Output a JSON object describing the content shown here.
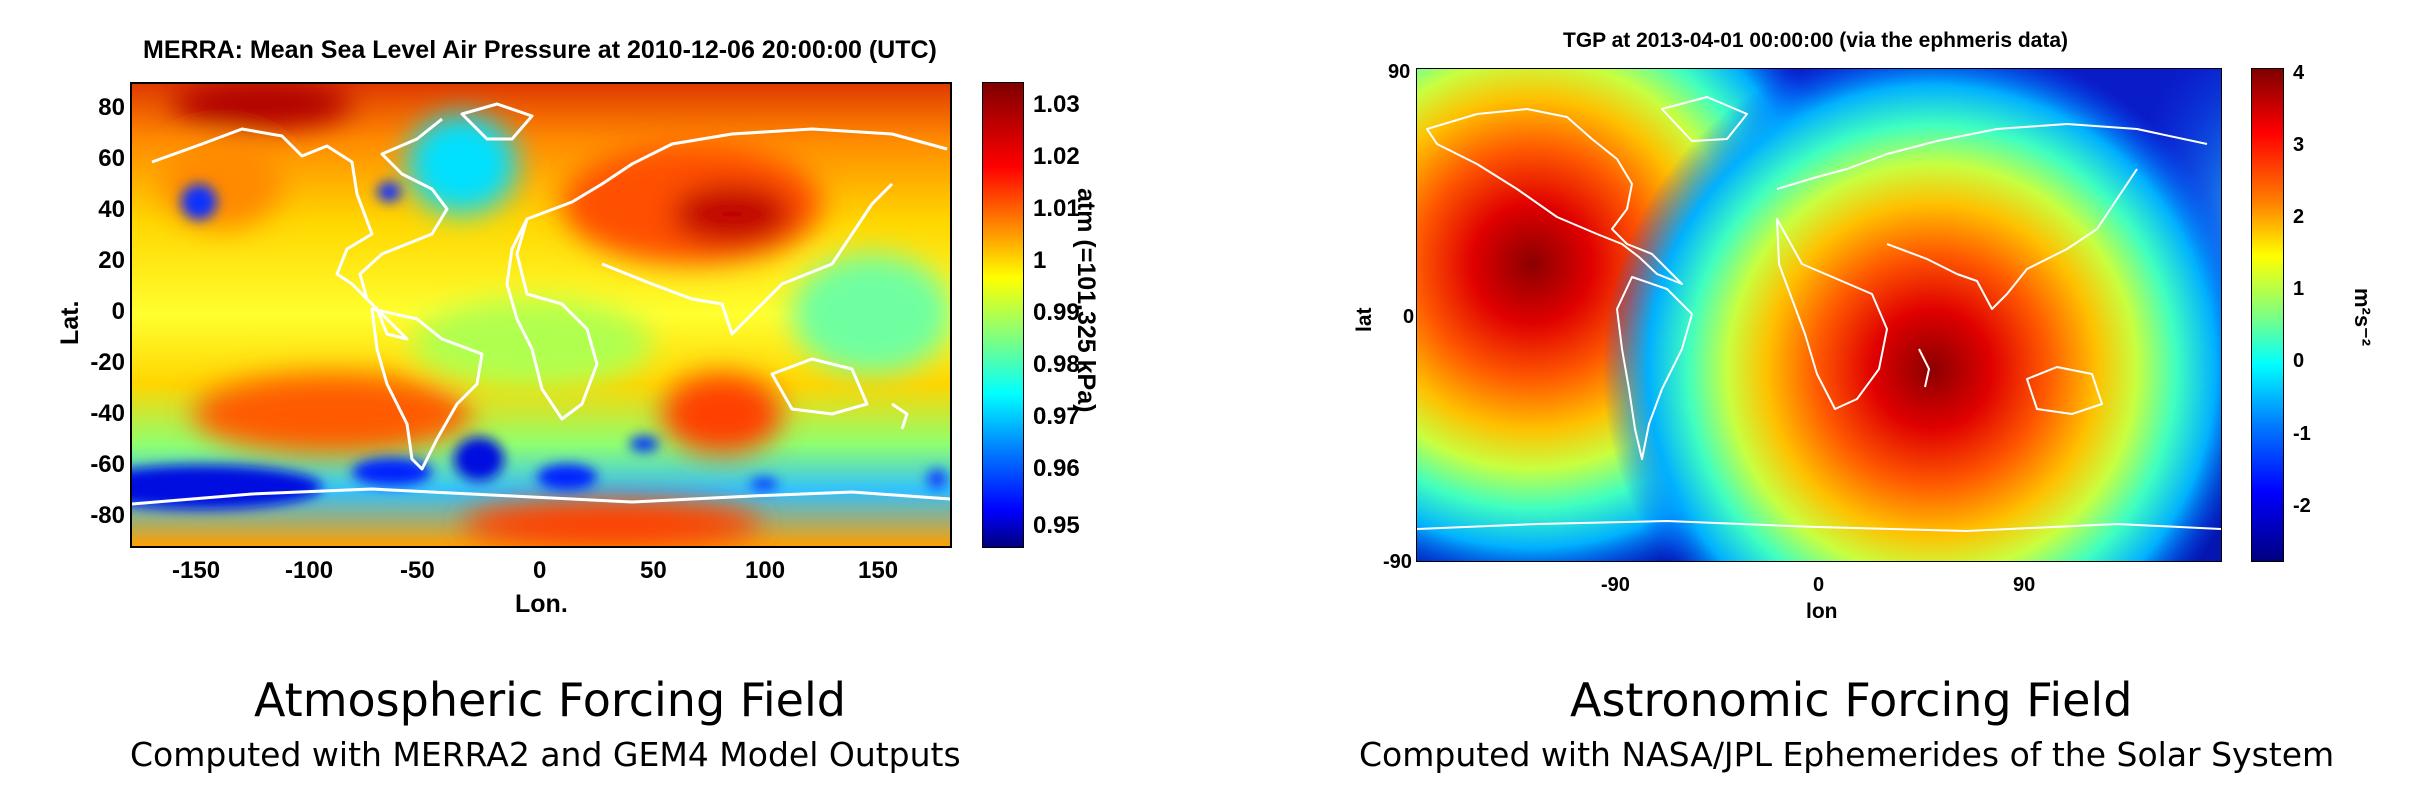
{
  "atmospheric": {
    "title": "MERRA: Mean Sea Level Air Pressure at 2010-12-06 20:00:00 (UTC)",
    "xlabel": "Lon.",
    "ylabel": "Lat.",
    "xticks": [
      "-150",
      "-100",
      "-50",
      "0",
      "50",
      "100",
      "150"
    ],
    "yticks": [
      "80",
      "60",
      "40",
      "20",
      "0",
      "-20",
      "-40",
      "-60",
      "-80"
    ],
    "colorbar_label": "atm (=101.325 kPa)",
    "colorbar_ticks": [
      "1.03",
      "1.02",
      "1.01",
      "1",
      "0.99",
      "0.98",
      "0.97",
      "0.96",
      "0.95"
    ],
    "caption_title": "Atmospheric Forcing Field",
    "caption_sub": "Computed with MERRA2 and GEM4 Model Outputs"
  },
  "astronomic": {
    "title": "TGP at 2013-04-01 00:00:00 (via the ephmeris data)",
    "xlabel": "lon",
    "ylabel": "lat",
    "xticks": [
      "-90",
      "0",
      "90"
    ],
    "yticks": [
      "90",
      "0",
      "-90"
    ],
    "colorbar_label": "m²s⁻²",
    "colorbar_ticks": [
      "4",
      "3",
      "2",
      "1",
      "0",
      "-1",
      "-2"
    ],
    "caption_title": "Astronomic Forcing Field",
    "caption_sub": "Computed with NASA/JPL Ephemerides of the Solar System"
  },
  "colors": {
    "jet": [
      "#00007f",
      "#0000ff",
      "#007fff",
      "#00ffff",
      "#7fff7f",
      "#ffff00",
      "#ff7f00",
      "#ff0000",
      "#7f0000"
    ],
    "coastline": "#ffffff"
  }
}
